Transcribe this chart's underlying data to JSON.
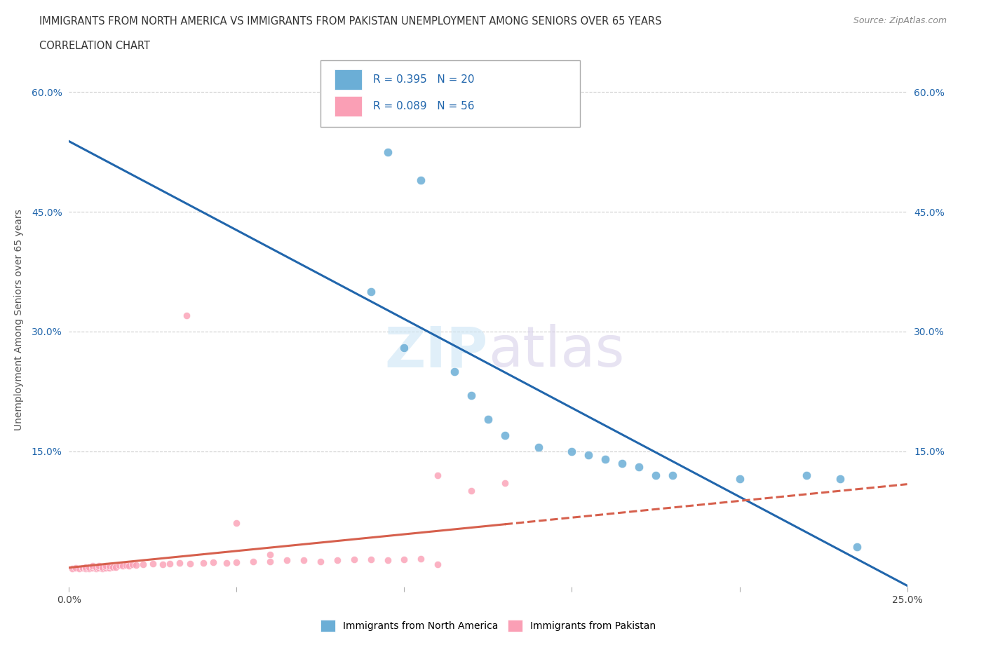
{
  "title_line1": "IMMIGRANTS FROM NORTH AMERICA VS IMMIGRANTS FROM PAKISTAN UNEMPLOYMENT AMONG SENIORS OVER 65 YEARS",
  "title_line2": "CORRELATION CHART",
  "source_text": "Source: ZipAtlas.com",
  "ylabel": "Unemployment Among Seniors over 65 years",
  "xlim": [
    0.0,
    0.25
  ],
  "ylim": [
    -0.02,
    0.65
  ],
  "blue_color": "#6baed6",
  "pink_color": "#fa9fb5",
  "blue_line_color": "#2166ac",
  "pink_line_color": "#d6604d",
  "blue_scatter_x": [
    0.095,
    0.105,
    0.09,
    0.1,
    0.115,
    0.12,
    0.125,
    0.13,
    0.14,
    0.15,
    0.155,
    0.16,
    0.165,
    0.17,
    0.175,
    0.18,
    0.2,
    0.22,
    0.23,
    0.235
  ],
  "blue_scatter_y": [
    0.525,
    0.49,
    0.35,
    0.28,
    0.25,
    0.22,
    0.19,
    0.17,
    0.155,
    0.15,
    0.145,
    0.14,
    0.135,
    0.13,
    0.12,
    0.12,
    0.115,
    0.12,
    0.115,
    0.03
  ],
  "pink_scatter_x": [
    0.001,
    0.002,
    0.003,
    0.004,
    0.005,
    0.005,
    0.006,
    0.006,
    0.007,
    0.007,
    0.008,
    0.008,
    0.009,
    0.009,
    0.01,
    0.01,
    0.011,
    0.011,
    0.012,
    0.012,
    0.013,
    0.014,
    0.015,
    0.016,
    0.017,
    0.018,
    0.019,
    0.02,
    0.022,
    0.025,
    0.028,
    0.03,
    0.033,
    0.036,
    0.04,
    0.043,
    0.047,
    0.05,
    0.055,
    0.06,
    0.065,
    0.07,
    0.075,
    0.08,
    0.085,
    0.09,
    0.095,
    0.1,
    0.105,
    0.11,
    0.12,
    0.13,
    0.035,
    0.05,
    0.06,
    0.11
  ],
  "pink_scatter_y": [
    0.003,
    0.004,
    0.003,
    0.004,
    0.003,
    0.005,
    0.003,
    0.005,
    0.004,
    0.006,
    0.003,
    0.005,
    0.004,
    0.006,
    0.003,
    0.005,
    0.004,
    0.006,
    0.004,
    0.006,
    0.005,
    0.005,
    0.007,
    0.006,
    0.007,
    0.006,
    0.008,
    0.007,
    0.008,
    0.009,
    0.008,
    0.009,
    0.01,
    0.009,
    0.01,
    0.011,
    0.01,
    0.011,
    0.012,
    0.012,
    0.013,
    0.013,
    0.012,
    0.013,
    0.014,
    0.014,
    0.013,
    0.014,
    0.015,
    0.12,
    0.1,
    0.11,
    0.32,
    0.06,
    0.02,
    0.008
  ],
  "legend_r1": "R = 0.395",
  "legend_n1": "N = 20",
  "legend_r2": "R = 0.089",
  "legend_n2": "N = 56"
}
